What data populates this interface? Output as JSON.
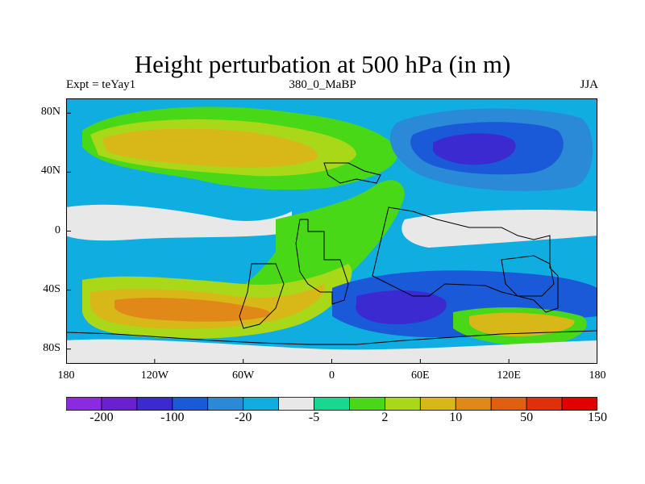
{
  "title": "Height perturbation at 500 hPa (in m)",
  "subtitle_left": "Expt = teYay1",
  "subtitle_center": "380_0_MaBP",
  "subtitle_right": "JJA",
  "map": {
    "projection": "cylindrical-equidistant",
    "lon_range": [
      -180,
      180
    ],
    "lat_range": [
      -90,
      90
    ],
    "y_ticks": [
      {
        "lat": 80,
        "label": "80N"
      },
      {
        "lat": 40,
        "label": "40N"
      },
      {
        "lat": 0,
        "label": "0"
      },
      {
        "lat": -40,
        "label": "40S"
      },
      {
        "lat": -80,
        "label": "80S"
      }
    ],
    "x_ticks": [
      {
        "lon": -180,
        "label": "180"
      },
      {
        "lon": -120,
        "label": "120W"
      },
      {
        "lon": -60,
        "label": "60W"
      },
      {
        "lon": 0,
        "label": "0"
      },
      {
        "lon": 60,
        "label": "60E"
      },
      {
        "lon": 120,
        "label": "120E"
      },
      {
        "lon": 180,
        "label": "180"
      }
    ]
  },
  "labelbar": {
    "colors": [
      "#8a2be2",
      "#6a1fd0",
      "#3a2ad0",
      "#1a5ad8",
      "#2a8ad8",
      "#10aee0",
      "#e8e8e8",
      "#18d890",
      "#48d818",
      "#a8d818",
      "#d8b818",
      "#e08818",
      "#e06010",
      "#e03008",
      "#e00000"
    ],
    "labels": [
      {
        "index": 1,
        "text": "-200"
      },
      {
        "index": 3,
        "text": "-100"
      },
      {
        "index": 5,
        "text": "-20"
      },
      {
        "index": 7,
        "text": "-5"
      },
      {
        "index": 9,
        "text": "2"
      },
      {
        "index": 11,
        "text": "10"
      },
      {
        "index": 13,
        "text": "50"
      },
      {
        "index": 15,
        "text": "150"
      }
    ]
  },
  "field_colors": {
    "deep_neg": "#3a2ad0",
    "neg2": "#1a5ad8",
    "neg1": "#2a8ad8",
    "neg0": "#10aee0",
    "zero": "#e8e8e8",
    "pos0": "#18d890",
    "pos1": "#48d818",
    "pos2": "#a8d818",
    "pos3": "#d8b818",
    "pos4": "#e08818"
  }
}
